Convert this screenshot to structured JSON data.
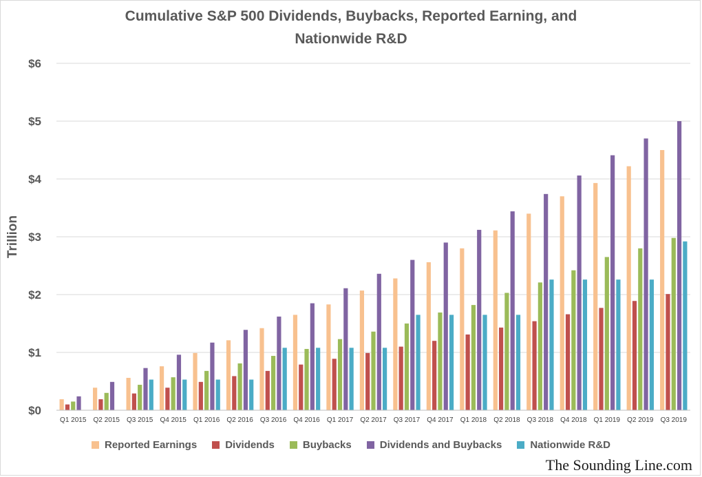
{
  "chart_data": {
    "type": "bar",
    "title_line1": "Cumulative S&P 500 Dividends, Buybacks, Reported Earning, and",
    "title_line2": "Nationwide R&D",
    "ylabel": "Trillion",
    "ylim": [
      0,
      6
    ],
    "yticks": [
      "$0",
      "$1",
      "$2",
      "$3",
      "$4",
      "$5",
      "$6"
    ],
    "grid": true,
    "legend_position": "bottom",
    "categories": [
      "Q1 2015",
      "Q2 2015",
      "Q3 2015",
      "Q4 2015",
      "Q1 2016",
      "Q2 2016",
      "Q3 2016",
      "Q4 2016",
      "Q1 2017",
      "Q2 2017",
      "Q3 2017",
      "Q4 2017",
      "Q1 2018",
      "Q2 2018",
      "Q3 2018",
      "Q4 2018",
      "Q1 2019",
      "Q2 2019",
      "Q3 2019"
    ],
    "series": [
      {
        "name": "Reported Earnings",
        "color": "#f8c18f",
        "values": [
          0.19,
          0.39,
          0.56,
          0.76,
          0.99,
          1.21,
          1.42,
          1.65,
          1.83,
          2.07,
          2.28,
          2.56,
          2.8,
          3.11,
          3.4,
          3.7,
          3.93,
          4.22,
          4.5
        ]
      },
      {
        "name": "Dividends",
        "color": "#c0504d",
        "values": [
          0.1,
          0.19,
          0.29,
          0.39,
          0.49,
          0.59,
          0.68,
          0.79,
          0.89,
          0.99,
          1.1,
          1.2,
          1.31,
          1.43,
          1.54,
          1.66,
          1.77,
          1.89,
          2.01
        ]
      },
      {
        "name": "Buybacks",
        "color": "#9bbb59",
        "values": [
          0.15,
          0.3,
          0.44,
          0.57,
          0.68,
          0.81,
          0.94,
          1.06,
          1.23,
          1.36,
          1.5,
          1.69,
          1.82,
          2.03,
          2.21,
          2.42,
          2.65,
          2.8,
          2.98
        ]
      },
      {
        "name": "Dividends and Buybacks",
        "color": "#8064a2",
        "values": [
          0.24,
          0.49,
          0.73,
          0.96,
          1.17,
          1.39,
          1.62,
          1.85,
          2.11,
          2.36,
          2.6,
          2.9,
          3.12,
          3.44,
          3.74,
          4.06,
          4.41,
          4.7,
          5.0
        ]
      },
      {
        "name": "Nationwide R&D",
        "color": "#4bacc6",
        "values": [
          null,
          null,
          0.53,
          0.53,
          0.53,
          0.53,
          1.08,
          1.08,
          1.08,
          1.08,
          1.65,
          1.65,
          1.65,
          1.65,
          2.26,
          2.26,
          2.26,
          2.26,
          2.92
        ]
      }
    ]
  },
  "watermark": "The Sounding Line.com"
}
